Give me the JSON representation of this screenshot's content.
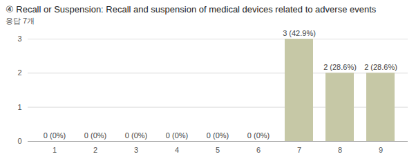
{
  "chart_data": {
    "type": "bar",
    "title": "④ Recall or Suspension: Recall and suspension of medical devices related to adverse events",
    "subtitle": "응답 7개",
    "categories": [
      "1",
      "2",
      "3",
      "4",
      "5",
      "6",
      "7",
      "8",
      "9"
    ],
    "values": [
      0,
      0,
      0,
      0,
      0,
      0,
      3,
      2,
      2
    ],
    "value_labels": [
      "0 (0%)",
      "0 (0%)",
      "0 (0%)",
      "0 (0%)",
      "0 (0%)",
      "0 (0%)",
      "3 (42.9%)",
      "2 (28.6%)",
      "2 (28.6%)"
    ],
    "data_labels": true,
    "color": "#c6c8a6",
    "ylim": [
      0,
      3
    ],
    "yticks": [
      0,
      1,
      2,
      3
    ],
    "grid": true
  }
}
